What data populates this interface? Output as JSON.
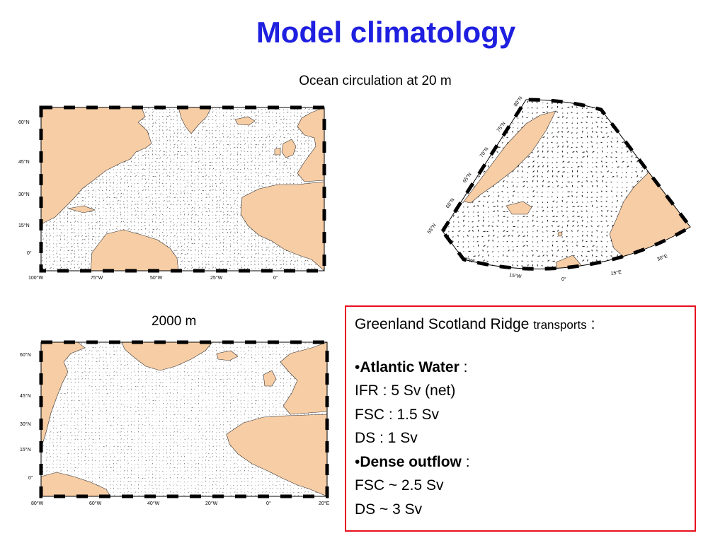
{
  "title": "Model climatology",
  "subtitle": "Ocean circulation at 20 m",
  "second_panel_label": "2000 m",
  "map_top": {
    "lat_labels": [
      "60°N",
      "45°N",
      "30°N",
      "15°N",
      "0°"
    ],
    "lon_labels": [
      "100°W",
      "75°W",
      "50°W",
      "25°W",
      "0°"
    ]
  },
  "map_bottom": {
    "lat_labels": [
      "60°N",
      "45°N",
      "30°N",
      "15°N",
      "0°"
    ],
    "lon_labels": [
      "80°W",
      "60°W",
      "40°W",
      "20°W",
      "0°",
      "20°E"
    ]
  },
  "map_polar": {
    "lat_labels": [
      "80°N",
      "75°N",
      "70°N",
      "65°N",
      "60°N",
      "55°N"
    ],
    "lon_labels": [
      "30°W",
      "15°W",
      "0°",
      "15°E",
      "30°E"
    ]
  },
  "colors": {
    "title": "#1f1fe0",
    "land": "#f7cda5",
    "box_border": "#e8101e"
  },
  "transports": {
    "heading": "Greenland Scotland Ridge",
    "heading_small": "transports",
    "heading_colon": ":",
    "atlantic_label": "Atlantic Water",
    "atlantic_colon": ":",
    "atlantic_lines": [
      "IFR : 5 Sv (net)",
      "FSC : 1.5 Sv",
      "DS : 1 Sv"
    ],
    "dense_label": "Dense outflow",
    "dense_colon": ":",
    "dense_lines": [
      "FSC ~ 2.5 Sv",
      "DS ~ 3 Sv"
    ]
  }
}
